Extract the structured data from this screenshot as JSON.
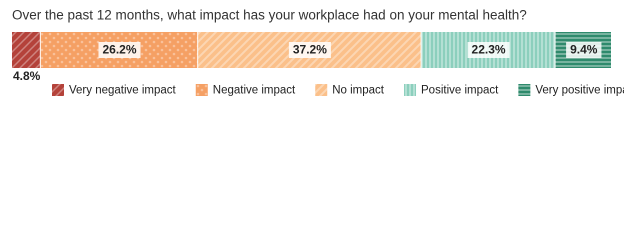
{
  "chart_data": {
    "type": "stacked-bar",
    "title": "Over the past 12 months, what impact has your workplace had on your mental health?",
    "series": [
      {
        "name": "Very negative impact",
        "color": "#b4423a",
        "pattern": "hatch",
        "values": [
          4.8
        ],
        "value_labels": [
          "4.8%"
        ]
      },
      {
        "name": "Negative impact",
        "color": "#f5a064",
        "pattern": "dots",
        "values": [
          26.2
        ],
        "value_labels": [
          "26.2%"
        ]
      },
      {
        "name": "No impact",
        "color": "#fbc08a",
        "pattern": "diagonal",
        "values": [
          37.2
        ],
        "value_labels": [
          "37.2%"
        ]
      },
      {
        "name": "Positive impact",
        "color": "#8ccfbd",
        "pattern": "vertical",
        "values": [
          22.3
        ],
        "value_labels": [
          "22.3%"
        ]
      },
      {
        "name": "Very positive impact",
        "color": "#2e8a6c",
        "pattern": "horizontal",
        "values": [
          9.4
        ],
        "value_labels": [
          "9.4%"
        ]
      }
    ]
  }
}
